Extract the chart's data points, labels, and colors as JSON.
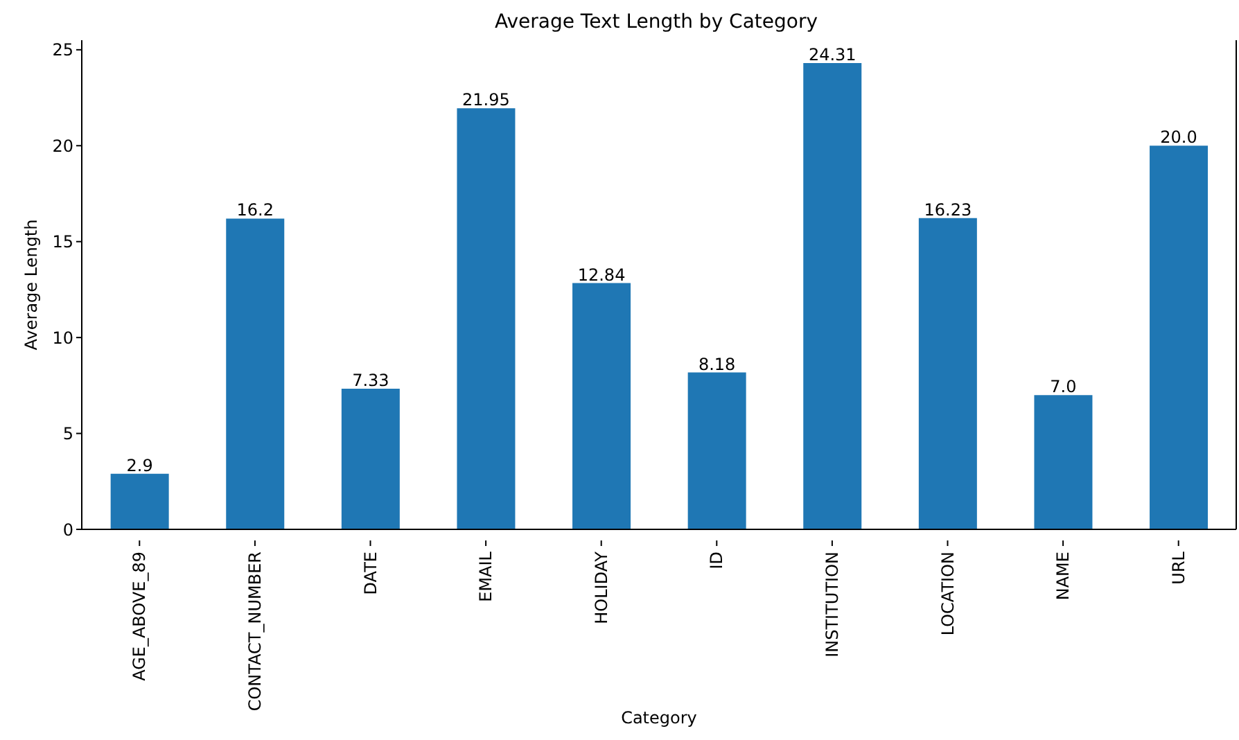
{
  "chart_data": {
    "type": "bar",
    "title": "Average Text Length by Category",
    "xlabel": "Category",
    "ylabel": "Average Length",
    "categories": [
      "AGE_ABOVE_89",
      "CONTACT_NUMBER",
      "DATE",
      "EMAIL",
      "HOLIDAY",
      "ID",
      "INSTITUTION",
      "LOCATION",
      "NAME",
      "URL"
    ],
    "values": [
      2.9,
      16.2,
      7.33,
      21.95,
      12.84,
      8.18,
      24.31,
      16.23,
      7.0,
      20.0
    ],
    "value_labels": [
      "2.9",
      "16.2",
      "7.33",
      "21.95",
      "12.84",
      "8.18",
      "24.31",
      "16.23",
      "7.0",
      "20.0"
    ],
    "color": "#1f77b4",
    "ylim": [
      0,
      25.5
    ],
    "yticks": [
      0,
      5,
      10,
      15,
      20,
      25
    ],
    "grid": false,
    "legend": false
  }
}
